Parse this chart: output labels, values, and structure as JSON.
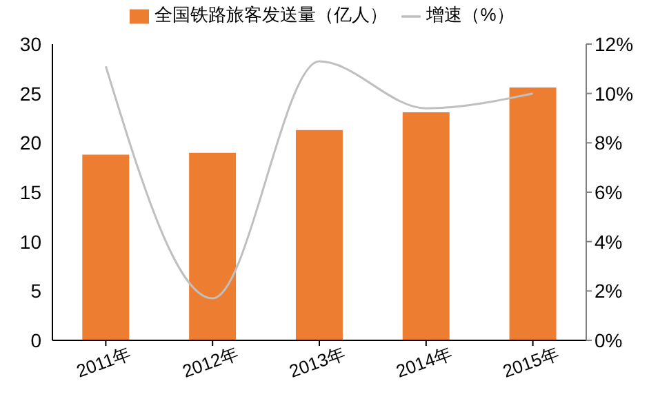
{
  "chart_data": {
    "type": "bar",
    "categories": [
      "2011年",
      "2012年",
      "2013年",
      "2014年",
      "2015年"
    ],
    "series": [
      {
        "name": "全国铁路旅客发送量（亿人）",
        "color": "#ed7d31",
        "values": [
          18.8,
          19.0,
          21.3,
          23.1,
          25.6
        ]
      },
      {
        "name": "增速（%）",
        "type": "line",
        "axis": "y2",
        "color": "#bfbfbf",
        "values": [
          11.1,
          1.7,
          11.3,
          9.4,
          10.0
        ]
      }
    ],
    "ylim": [
      0,
      30
    ],
    "yticks": [
      0,
      5,
      10,
      15,
      20,
      25,
      30
    ],
    "y2lim": [
      0,
      12
    ],
    "y2ticks": [
      {
        "value": 0,
        "label": "0%"
      },
      {
        "value": 2,
        "label": "2%"
      },
      {
        "value": 4,
        "label": "4%"
      },
      {
        "value": 6,
        "label": "6%"
      },
      {
        "value": 8,
        "label": "8%"
      },
      {
        "value": 10,
        "label": "10%"
      },
      {
        "value": 12,
        "label": "12%"
      }
    ],
    "grid": false,
    "legend": "top",
    "marker": "none"
  }
}
